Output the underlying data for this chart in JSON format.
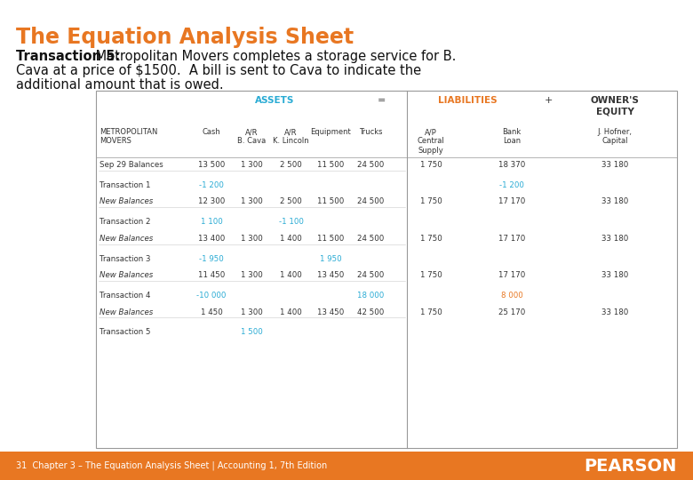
{
  "title": "The Equation Analysis Sheet",
  "title_color": "#E87722",
  "bg_color": "#FFFFFF",
  "transaction_bold": "Transaction 5:",
  "transaction_rest_line1": " Metropolitan Movers completes a storage service for B.",
  "transaction_line2": "Cava at a price of $1500.  A bill is sent to Cava to indicate the",
  "transaction_line3": "additional amount that is owed.",
  "footer_text": "31  Chapter 3 – The Equation Analysis Sheet | Accounting 1, 7th Edition",
  "footer_bg": "#E87722",
  "assets_label": "ASSETS",
  "assets_color": "#29ABD4",
  "equals_label": "=",
  "liab_label": "LIABILITIES",
  "liab_color": "#E87722",
  "plus_label": "+",
  "equity_label": "OWNER'S\nEQUITY",
  "col_headers": [
    "METROPOLITAN\nMOVERS",
    "Cash",
    "A/R\nB. Cava",
    "A/R\nK. Lincoln",
    "Equipment",
    "Trucks",
    "A/P\nCentral\nSupply",
    "Bank\nLoan",
    "J. Hofner,\nCapital"
  ],
  "rows": [
    {
      "label": "Sep 29 Balances",
      "vals": [
        "13 500",
        "1 300",
        "2 500",
        "11 500",
        "24 500",
        "1 750",
        "18 370",
        "33 180"
      ],
      "val_colors": [
        "k",
        "k",
        "k",
        "k",
        "k",
        "k",
        "k",
        "k"
      ],
      "italic": false
    },
    {
      "label": "Transaction 1",
      "vals": [
        "-1 200",
        "",
        "",
        "",
        "",
        "",
        "-1 200",
        ""
      ],
      "val_colors": [
        "#29ABD4",
        "k",
        "k",
        "k",
        "k",
        "k",
        "#29ABD4",
        "k"
      ],
      "italic": false
    },
    {
      "label": "New Balances",
      "vals": [
        "12 300",
        "1 300",
        "2 500",
        "11 500",
        "24 500",
        "1 750",
        "17 170",
        "33 180"
      ],
      "val_colors": [
        "k",
        "k",
        "k",
        "k",
        "k",
        "k",
        "k",
        "k"
      ],
      "italic": true
    },
    {
      "label": "Transaction 2",
      "vals": [
        "1 100",
        "",
        "-1 100",
        "",
        "",
        "",
        "",
        ""
      ],
      "val_colors": [
        "#29ABD4",
        "k",
        "#29ABD4",
        "k",
        "k",
        "k",
        "k",
        "k"
      ],
      "italic": false
    },
    {
      "label": "New Balances",
      "vals": [
        "13 400",
        "1 300",
        "1 400",
        "11 500",
        "24 500",
        "1 750",
        "17 170",
        "33 180"
      ],
      "val_colors": [
        "k",
        "k",
        "k",
        "k",
        "k",
        "k",
        "k",
        "k"
      ],
      "italic": true
    },
    {
      "label": "Transaction 3",
      "vals": [
        "-1 950",
        "",
        "",
        "1 950",
        "",
        "",
        "",
        ""
      ],
      "val_colors": [
        "#29ABD4",
        "k",
        "k",
        "#29ABD4",
        "k",
        "k",
        "k",
        "k"
      ],
      "italic": false
    },
    {
      "label": "New Balances",
      "vals": [
        "11 450",
        "1 300",
        "1 400",
        "13 450",
        "24 500",
        "1 750",
        "17 170",
        "33 180"
      ],
      "val_colors": [
        "k",
        "k",
        "k",
        "k",
        "k",
        "k",
        "k",
        "k"
      ],
      "italic": true
    },
    {
      "label": "Transaction 4",
      "vals": [
        "-10 000",
        "",
        "",
        "",
        "18 000",
        "",
        "8 000",
        ""
      ],
      "val_colors": [
        "#29ABD4",
        "k",
        "k",
        "k",
        "#29ABD4",
        "k",
        "#E87722",
        "k"
      ],
      "italic": false
    },
    {
      "label": "New Balances",
      "vals": [
        "1 450",
        "1 300",
        "1 400",
        "13 450",
        "42 500",
        "1 750",
        "25 170",
        "33 180"
      ],
      "val_colors": [
        "k",
        "k",
        "k",
        "k",
        "k",
        "k",
        "k",
        "k"
      ],
      "italic": true
    },
    {
      "label": "Transaction 5",
      "vals": [
        "",
        "1 500",
        "",
        "",
        "",
        "",
        "",
        ""
      ],
      "val_colors": [
        "k",
        "#29ABD4",
        "k",
        "k",
        "k",
        "k",
        "k",
        "k"
      ],
      "italic": false
    }
  ]
}
